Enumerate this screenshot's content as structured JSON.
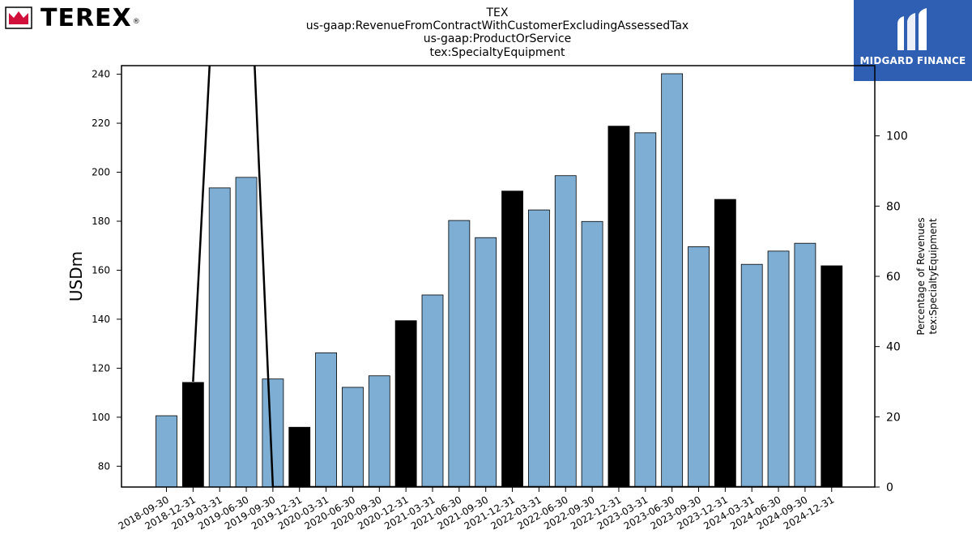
{
  "brand": {
    "name": "TEREX",
    "reg": "®",
    "colors": {
      "mark": "#d0103a"
    }
  },
  "badge": {
    "label": "MIDGARD FINANCE",
    "color": "#2f5fb3"
  },
  "chart_data": {
    "type": "bar",
    "title_lines": [
      "TEX",
      "us-gaap:RevenueFromContractWithCustomerExcludingAssessedTax",
      "us-gaap:ProductOrService",
      "tex:SpecialtyEquipment"
    ],
    "ylabel": "USDm",
    "y2label_lines": [
      "Percentage of Revenues",
      "tex:SpecialtyEquipment"
    ],
    "ylim": [
      71.5,
      243.5
    ],
    "y_ticks": [
      80,
      100,
      120,
      140,
      160,
      180,
      200,
      220,
      240
    ],
    "y2lim": [
      0,
      120
    ],
    "y2_ticks": [
      0,
      20,
      40,
      60,
      80,
      100
    ],
    "categories": [
      "2018-09-30",
      "2018-12-31",
      "2019-03-31",
      "2019-06-30",
      "2019-09-30",
      "2019-12-31",
      "2020-03-31",
      "2020-06-30",
      "2020-09-30",
      "2020-12-31",
      "2021-03-31",
      "2021-06-30",
      "2021-09-30",
      "2021-12-31",
      "2022-03-31",
      "2022-06-30",
      "2022-09-30",
      "2022-12-31",
      "2023-03-31",
      "2023-06-30",
      "2023-09-30",
      "2023-12-31",
      "2024-03-31",
      "2024-06-30",
      "2024-09-30",
      "2024-12-31"
    ],
    "values": [
      100.6,
      114.2,
      193.6,
      197.9,
      115.6,
      95.9,
      126.3,
      112.2,
      116.9,
      139.4,
      149.9,
      180.3,
      173.3,
      192.3,
      184.6,
      198.6,
      179.9,
      218.8,
      216.1,
      240.2,
      169.6,
      188.9,
      162.4,
      167.8,
      171.0,
      161.8
    ],
    "year_end": [
      false,
      true,
      false,
      false,
      false,
      true,
      false,
      false,
      false,
      true,
      false,
      false,
      false,
      true,
      false,
      false,
      false,
      true,
      false,
      false,
      false,
      true,
      false,
      false,
      false,
      true
    ],
    "pct_line": [
      null,
      30,
      175,
      175,
      0,
      0,
      0,
      0,
      0,
      0,
      0,
      0,
      0,
      0,
      0,
      0,
      0,
      0,
      0,
      0,
      0,
      0,
      0,
      0,
      0,
      0
    ],
    "colors": {
      "quarter": "#7eaed3",
      "year_end": "#000000",
      "line": "#000000"
    }
  }
}
